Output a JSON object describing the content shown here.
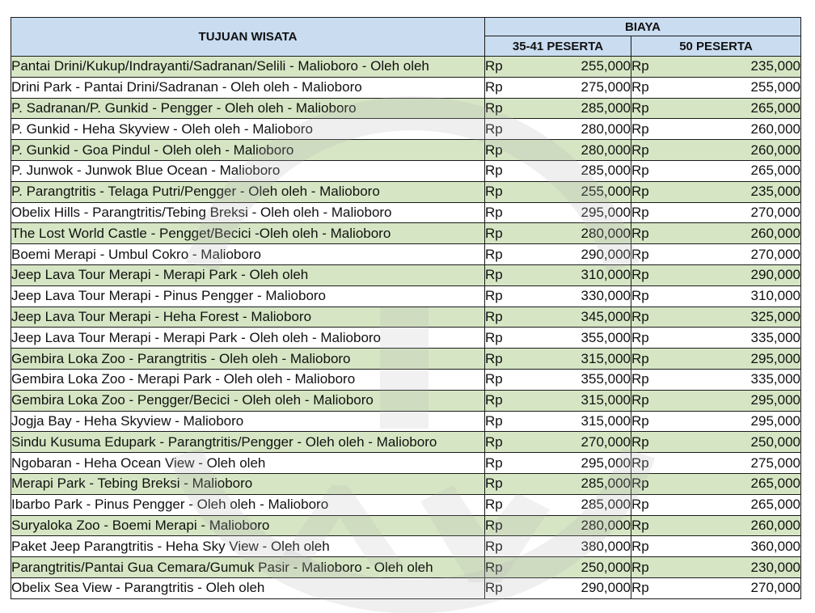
{
  "header": {
    "destination": "TUJUAN WISATA",
    "cost": "BIAYA",
    "group1": "35-41 PESERTA",
    "group2": "50 PESERTA"
  },
  "currency": "Rp",
  "rows": [
    {
      "destination": "Pantai Drini/Kukup/Indrayanti/Sadranan/Selili - Malioboro - Oleh oleh",
      "price1": "255,000",
      "price2": "235,000"
    },
    {
      "destination": "Drini Park - Pantai Drini/Sadranan - Oleh oleh - Malioboro",
      "price1": "275,000",
      "price2": "255,000"
    },
    {
      "destination": "P. Sadranan/P. Gunkid - Pengger - Oleh oleh - Malioboro",
      "price1": "285,000",
      "price2": "265,000"
    },
    {
      "destination": "P. Gunkid - Heha Skyview - Oleh oleh - Malioboro",
      "price1": "280,000",
      "price2": "260,000"
    },
    {
      "destination": "P. Gunkid - Goa Pindul - Oleh oleh - Malioboro",
      "price1": "280,000",
      "price2": "260,000"
    },
    {
      "destination": "P. Junwok - Junwok Blue Ocean - Malioboro",
      "price1": "285,000",
      "price2": "265,000"
    },
    {
      "destination": "P. Parangtritis - Telaga Putri/Pengger - Oleh oleh - Malioboro",
      "price1": "255,000",
      "price2": "235,000"
    },
    {
      "destination": "Obelix Hills - Parangtritis/Tebing Breksi - Oleh oleh - Malioboro",
      "price1": "295,000",
      "price2": "270,000"
    },
    {
      "destination": "The Lost World Castle - Pengget/Becici -Oleh oleh - Malioboro",
      "price1": "280,000",
      "price2": "260,000"
    },
    {
      "destination": "Boemi Merapi - Umbul Cokro - Malioboro",
      "price1": "290,000",
      "price2": "270,000"
    },
    {
      "destination": "Jeep Lava Tour Merapi - Merapi Park - Oleh oleh",
      "price1": "310,000",
      "price2": "290,000"
    },
    {
      "destination": "Jeep Lava Tour Merapi - Pinus Pengger - Malioboro",
      "price1": "330,000",
      "price2": "310,000"
    },
    {
      "destination": "Jeep Lava Tour Merapi - Heha Forest - Malioboro",
      "price1": "345,000",
      "price2": "325,000"
    },
    {
      "destination": "Jeep Lava Tour Merapi - Merapi Park - Oleh oleh - Malioboro",
      "price1": "355,000",
      "price2": "335,000"
    },
    {
      "destination": "Gembira Loka Zoo - Parangtritis - Oleh oleh - Malioboro",
      "price1": "315,000",
      "price2": "295,000"
    },
    {
      "destination": "Gembira Loka Zoo - Merapi Park - Oleh oleh - Malioboro",
      "price1": "355,000",
      "price2": "335,000"
    },
    {
      "destination": "Gembira Loka Zoo - Pengger/Becici - Oleh oleh - Malioboro",
      "price1": "315,000",
      "price2": "295,000"
    },
    {
      "destination": "Jogja Bay - Heha Skyview - Malioboro",
      "price1": "315,000",
      "price2": "295,000"
    },
    {
      "destination": "Sindu Kusuma Edupark - Parangtritis/Pengger - Oleh oleh - Malioboro",
      "price1": "270,000",
      "price2": "250,000"
    },
    {
      "destination": "Ngobaran - Heha Ocean View - Oleh oleh",
      "price1": "295,000",
      "price2": "275,000"
    },
    {
      "destination": "Merapi Park - Tebing Breksi - Malioboro",
      "price1": "285,000",
      "price2": "265,000"
    },
    {
      "destination": "Ibarbo Park - Pinus Pengger - Oleh oleh - Malioboro",
      "price1": "285,000",
      "price2": "265,000"
    },
    {
      "destination": "Suryaloka Zoo - Boemi Merapi - Malioboro",
      "price1": "280,000",
      "price2": "260,000"
    },
    {
      "destination": "Paket Jeep Parangtritis - Heha Sky View - Oleh oleh",
      "price1": "380,000",
      "price2": "360,000"
    },
    {
      "destination": "Parangtritis/Pantai Gua Cemara/Gumuk Pasir - Malioboro - Oleh oleh",
      "price1": "250,000",
      "price2": "230,000"
    },
    {
      "destination": "Obelix Sea View - Parangtritis - Oleh oleh",
      "price1": "290,000",
      "price2": "270,000"
    }
  ],
  "colors": {
    "header_bg": "#c9dcf0",
    "row_green": "#d6e6c4",
    "watermark": "#b4b4b4"
  },
  "watermark_icon": "logo-watermark-icon"
}
